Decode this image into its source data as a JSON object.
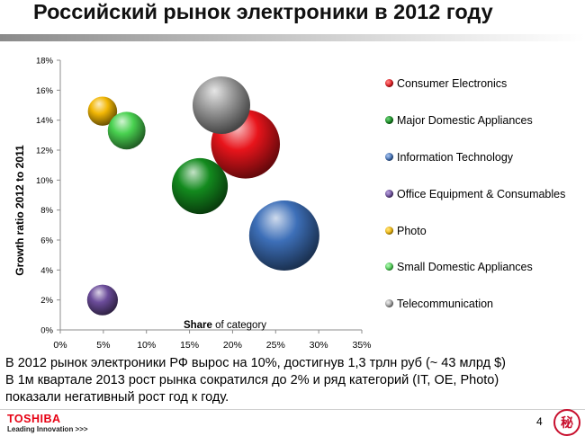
{
  "slide": {
    "title": "Российский рынок электроники в 2012 году",
    "caption_lines": [
      "В 2012 рынок электроники РФ вырос на 10%, достигнув 1,3 трлн руб (~ 43 млрд $)",
      "В 1м квартале 2013 рост рынка сократился до 2% и ряд категорий (IT, OE, Photo)",
      "показали негативный рост год к году."
    ],
    "logo_name": "TOSHIBA",
    "logo_tagline": "Leading Innovation >>>",
    "page_number": "4",
    "seal_glyph": "秘"
  },
  "chart_data": {
    "type": "scatter",
    "subtype": "bubble",
    "xlabel_bold": "Share",
    "xlabel_rest": " of category",
    "ylabel": "Growth ratio  2012 to 2011",
    "x_ticks": [
      "0%",
      "5%",
      "10%",
      "15%",
      "20%",
      "25%",
      "30%",
      "35%"
    ],
    "y_ticks": [
      "0%",
      "2%",
      "4%",
      "6%",
      "8%",
      "10%",
      "12%",
      "14%",
      "16%",
      "18%"
    ],
    "xlim": [
      0,
      35
    ],
    "ylim": [
      0,
      18
    ],
    "grid": false,
    "legend_position": "right",
    "series": [
      {
        "name": "Consumer Electronics",
        "x": 21.5,
        "y": 12.4,
        "size": 25,
        "color": "#e8141b"
      },
      {
        "name": "Major Domestic Appliances",
        "x": 16.2,
        "y": 9.6,
        "size": 16.5,
        "color": "#138a1e"
      },
      {
        "name": "Information Technology",
        "x": 26.0,
        "y": 6.3,
        "size": 26,
        "color": "#3d6fb8"
      },
      {
        "name": "Office Equipment & Consumables",
        "x": 4.9,
        "y": 2.0,
        "size": 5,
        "color": "#6b4c9a"
      },
      {
        "name": "Photo",
        "x": 4.9,
        "y": 14.6,
        "size": 4.5,
        "color": "#f2b705"
      },
      {
        "name": "Small Domestic Appliances",
        "x": 7.7,
        "y": 13.3,
        "size": 7.5,
        "color": "#49d150"
      },
      {
        "name": "Telecommunication",
        "x": 18.7,
        "y": 15.0,
        "size": 17.5,
        "color": "#9c9c9c"
      }
    ]
  }
}
